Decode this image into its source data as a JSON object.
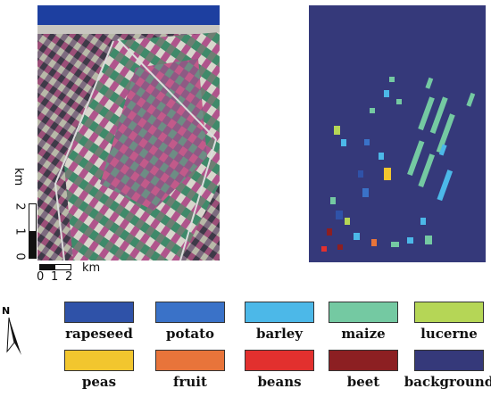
{
  "scale_bar": {
    "vertical_unit": "km",
    "vertical_ticks": [
      "2",
      "1",
      "0"
    ],
    "horizontal_unit": "km",
    "horizontal_ticks": [
      "0",
      "1",
      "2"
    ]
  },
  "north_arrow": {
    "label": "N"
  },
  "legend": [
    {
      "label": "rapeseed",
      "color": "#2f52a8"
    },
    {
      "label": "potato",
      "color": "#3a72c8"
    },
    {
      "label": "barley",
      "color": "#4cb8e8"
    },
    {
      "label": "maize",
      "color": "#74c9a2"
    },
    {
      "label": "lucerne",
      "color": "#b5d656"
    },
    {
      "label": "peas",
      "color": "#f2c62e"
    },
    {
      "label": "fruit",
      "color": "#e8743a"
    },
    {
      "label": "beans",
      "color": "#e2302e"
    },
    {
      "label": "beet",
      "color": "#8c1f22"
    },
    {
      "label": "background",
      "color": "#35397a"
    }
  ]
}
